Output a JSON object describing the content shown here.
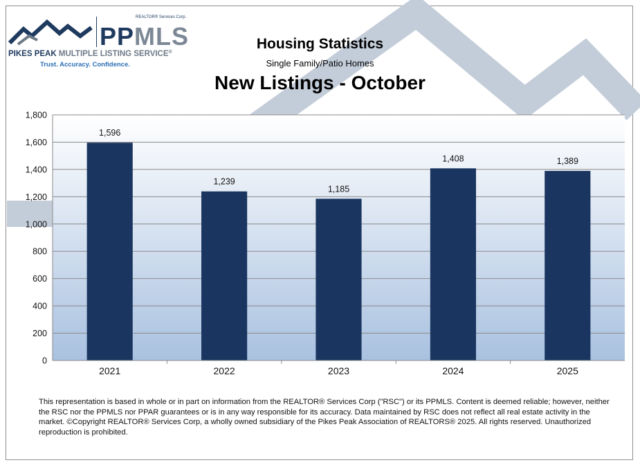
{
  "logo": {
    "corp_label": "REALTOR® Services Corp.",
    "brand_pp": "PP",
    "brand_mls": "MLS",
    "full_name_a": "PIKES PEAK",
    "full_name_b": " MULTIPLE LISTING SERVICE",
    "full_name_mark": "®",
    "tagline": "Trust. Accuracy. Confidence."
  },
  "header": {
    "title": "Housing Statistics",
    "subtitle": "Single Family/Patio Homes",
    "chart_title": "New Listings - October"
  },
  "colors": {
    "bar": "#1a3560",
    "plot_top": "#ffffff",
    "plot_bottom": "#a9c1e0",
    "mountain": "#c3cdd9"
  },
  "chart_data": {
    "type": "bar",
    "title": "New Listings - October",
    "categories": [
      "2021",
      "2022",
      "2023",
      "2024",
      "2025"
    ],
    "values": [
      1596,
      1239,
      1185,
      1408,
      1389
    ],
    "value_labels": [
      "1,596",
      "1,239",
      "1,185",
      "1,408",
      "1,389"
    ],
    "ylim": [
      0,
      1800
    ],
    "yticks": [
      0,
      200,
      400,
      600,
      800,
      1000,
      1200,
      1400,
      1600,
      1800
    ],
    "ytick_labels": [
      "0",
      "200",
      "400",
      "600",
      "800",
      "1,000",
      "1,200",
      "1,400",
      "1,600",
      "1,800"
    ],
    "grid": true,
    "xlabel": "",
    "ylabel": ""
  },
  "footer": {
    "disclaimer": "This representation is based in whole or in part on information from the REALTOR® Services Corp (\"RSC\") or its PPMLS. Content is deemed reliable; however, neither the RSC nor the PPMLS nor PPAR guarantees or is in any way responsible for its accuracy. Data maintained by RSC does not reflect all real estate activity in the market. ©Copyright REALTOR® Services Corp, a wholly owned subsidiary of the Pikes Peak Association of REALTORS® 2025.  All rights reserved. Unauthorized reproduction is prohibited."
  }
}
